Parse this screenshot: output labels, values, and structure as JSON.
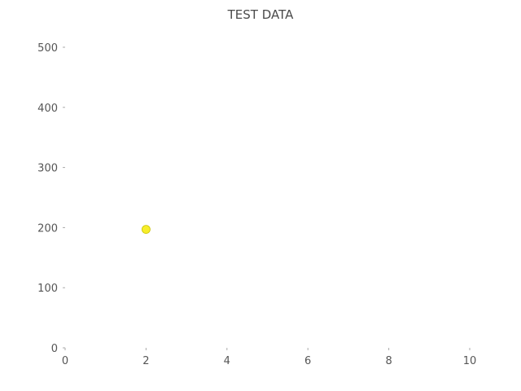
{
  "chart_data": {
    "type": "scatter",
    "title": "TEST DATA",
    "xlabel": "",
    "ylabel": "",
    "xlim": [
      0,
      10
    ],
    "ylim": [
      0,
      500
    ],
    "x_ticks": [
      0,
      2,
      4,
      6,
      8,
      10
    ],
    "y_ticks": [
      0,
      100,
      200,
      300,
      400,
      500
    ],
    "grid": false,
    "legend": "none",
    "series": [
      {
        "x": [
          2
        ],
        "y": [
          197
        ],
        "color": "#f7ee2a",
        "edge_color": "#c9c200"
      }
    ],
    "colors": {
      "text": "#4a4a4a",
      "tick": "#aaaaaa"
    }
  }
}
